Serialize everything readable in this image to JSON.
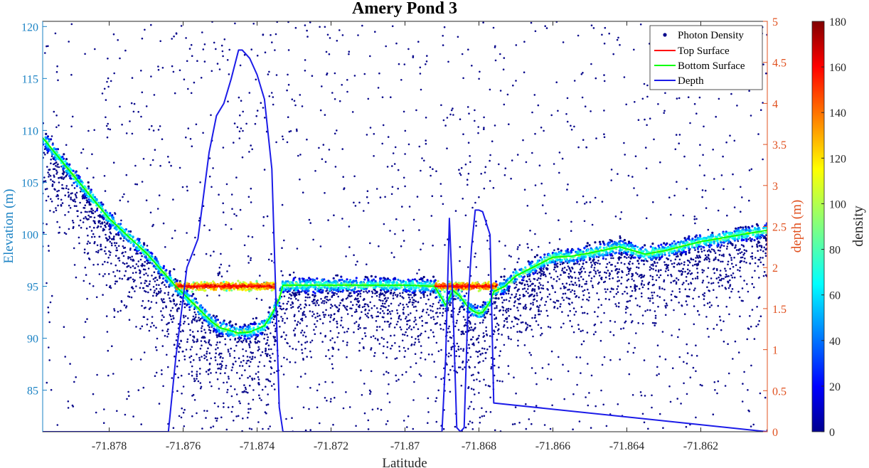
{
  "chart_data": {
    "type": "scatter",
    "title": "Amery Pond 3",
    "xlabel": "Latitude",
    "ylabel_left": "Elevation (m)",
    "ylabel_right": "depth (m)",
    "colorbar_label": "density",
    "xlim": [
      -71.8798,
      -71.8602
    ],
    "ylim_left": [
      81,
      120.5
    ],
    "ylim_right": [
      0,
      5
    ],
    "x_ticks": [
      -71.878,
      -71.876,
      -71.874,
      -71.872,
      -71.87,
      -71.868,
      -71.866,
      -71.864,
      -71.862
    ],
    "x_tick_labels": [
      "-71.878",
      "-71.876",
      "-71.874",
      "-71.872",
      "-71.87",
      "-71.868",
      "-71.866",
      "-71.864",
      "-71.862"
    ],
    "y_left_ticks": [
      85,
      90,
      95,
      100,
      105,
      110,
      115,
      120
    ],
    "y_left_tick_labels": [
      "85",
      "90",
      "95",
      "100",
      "105",
      "110",
      "115",
      "120"
    ],
    "y_right_ticks": [
      0,
      0.5,
      1,
      1.5,
      2,
      2.5,
      3,
      3.5,
      4,
      4.5,
      5
    ],
    "y_right_tick_labels": [
      "0",
      "0.5",
      "1",
      "1.5",
      "2",
      "2.5",
      "3",
      "3.5",
      "4",
      "4.5",
      "5"
    ],
    "colorbar_ticks": [
      0,
      20,
      40,
      60,
      80,
      100,
      120,
      140,
      160,
      180
    ],
    "colorbar_tick_labels": [
      "0",
      "20",
      "40",
      "60",
      "80",
      "100",
      "120",
      "140",
      "160",
      "180"
    ],
    "colorbar_range": [
      0,
      180
    ],
    "colormap": "jet",
    "legend_position": "top-right",
    "legend": [
      {
        "label": "Photon Density",
        "style": "marker",
        "color": "#00008b"
      },
      {
        "label": "Top Surface",
        "style": "line",
        "color": "#ff0000"
      },
      {
        "label": "Bottom Surface",
        "style": "line",
        "color": "#00ff00"
      },
      {
        "label": "Depth",
        "style": "line",
        "color": "#0000ff"
      }
    ],
    "colors": {
      "left_axis": "#1a82c4",
      "right_axis": "#e0501e",
      "depth_line": "#1b1be8",
      "top_surface": "#ff0000",
      "bottom_surface": "#00ff00"
    },
    "series": [
      {
        "name": "Bottom Surface",
        "axis": "left",
        "x": [
          -71.8798,
          -71.879,
          -71.878,
          -71.877,
          -71.8762,
          -71.8756,
          -71.8752,
          -71.875,
          -71.8745,
          -71.8742,
          -71.8738,
          -71.8736,
          -71.8734,
          -71.8733,
          -71.872,
          -71.871,
          -71.87,
          -71.8692,
          -71.8689,
          -71.8687,
          -71.8685,
          -71.8683,
          -71.8681,
          -71.868,
          -71.8679,
          -71.8677,
          -71.8676,
          -71.8673,
          -71.867,
          -71.866,
          -71.8655,
          -71.865,
          -71.8642,
          -71.8635,
          -71.863,
          -71.862,
          -71.8602
        ],
        "y": [
          109.3,
          105.8,
          101.5,
          98.2,
          95.0,
          92.9,
          91.5,
          91.0,
          90.5,
          90.6,
          91.2,
          92.3,
          93.8,
          95.1,
          95.1,
          95.1,
          95.1,
          95.0,
          93.2,
          94.6,
          94.0,
          93.0,
          92.5,
          92.4,
          92.5,
          93.5,
          94.5,
          95.0,
          96.0,
          97.8,
          97.9,
          98.2,
          98.8,
          98.1,
          98.4,
          99.3,
          100.4
        ]
      },
      {
        "name": "Top Surface",
        "axis": "left",
        "x": [
          -71.876,
          -71.8737
        ],
        "y": [
          95.0,
          95.0
        ]
      },
      {
        "name": "Top Surface",
        "axis": "left",
        "x": [
          -71.8692,
          -71.8676
        ],
        "y": [
          95.0,
          95.0
        ]
      },
      {
        "name": "Depth",
        "axis": "right",
        "x": [
          -71.8798,
          -71.8764,
          -71.8762,
          -71.8759,
          -71.8756,
          -71.8753,
          -71.8751,
          -71.8749,
          -71.8747,
          -71.8745,
          -71.8744,
          -71.8742,
          -71.874,
          -71.8738,
          -71.8736,
          -71.8734,
          -71.8733,
          -71.869,
          -71.8689,
          -71.8688,
          -71.8687,
          -71.8686,
          -71.8685,
          -71.8684,
          -71.8683,
          -71.8682,
          -71.8681,
          -71.868,
          -71.8679,
          -71.8677,
          -71.8676,
          -71.8602
        ],
        "y": [
          0,
          0,
          0.9,
          2.0,
          2.35,
          3.4,
          3.85,
          4.0,
          4.3,
          4.65,
          4.65,
          4.55,
          4.35,
          4.05,
          3.2,
          0.3,
          0,
          0,
          0.9,
          2.6,
          1.5,
          0.05,
          0,
          0.05,
          1.5,
          2.25,
          2.7,
          2.7,
          2.68,
          2.4,
          0.35,
          0
        ]
      }
    ],
    "scatter": {
      "name": "Photon Density",
      "note_values": "dense band follows the Bottom Surface, top surface photons concentrated at 95 m over both ponds, sparse noise photons distributed across the full elevation range"
    }
  }
}
